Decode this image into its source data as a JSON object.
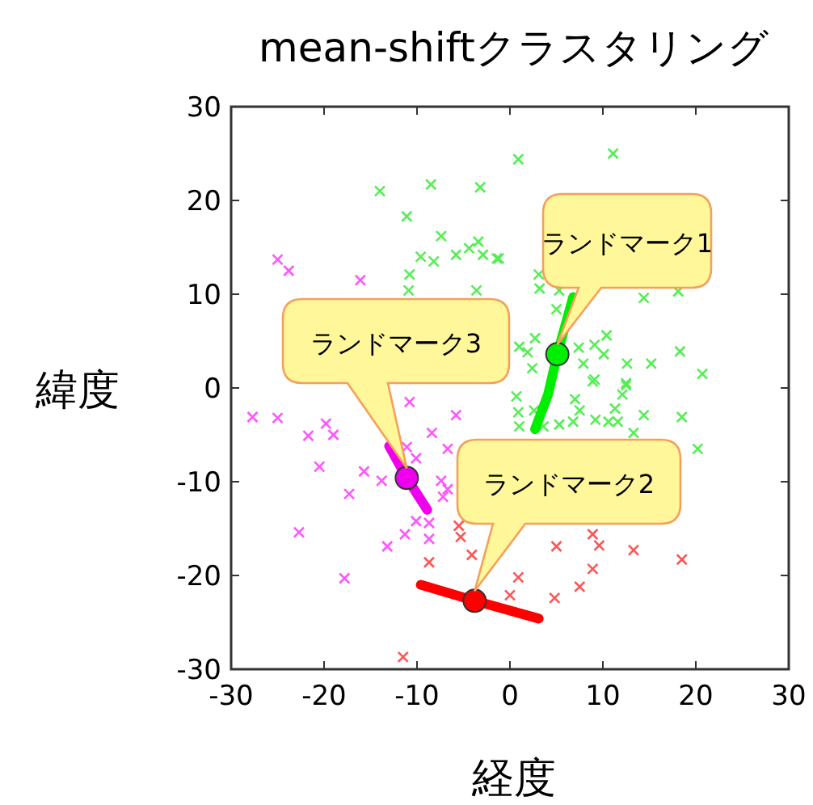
{
  "chart_data": {
    "type": "scatter",
    "title": "mean-shiftクラスタリング",
    "xlabel": "経度",
    "ylabel": "緯度",
    "xlim": [
      -30,
      30
    ],
    "ylim": [
      -30,
      30
    ],
    "xticks": [
      -30,
      -20,
      -10,
      0,
      10,
      20,
      30
    ],
    "yticks": [
      -30,
      -20,
      -10,
      0,
      10,
      20,
      30
    ],
    "grid": false,
    "series": [
      {
        "marker": "cross",
        "color": "#55ee55",
        "x": [
          -14.0,
          -8.5,
          -3.2,
          -11.1,
          -7.4,
          -9.6,
          -8.2,
          -5.8,
          -4.4,
          -3.4,
          -2.9,
          -1.4,
          -10.8,
          -10.9,
          -3.6,
          0.9,
          11.1,
          -1.2,
          3.1,
          3.2,
          5.3,
          14.4,
          18.1,
          5.0,
          2.7,
          10.4,
          9.1,
          7.4,
          1.0,
          1.9,
          10.1,
          18.3,
          7.9,
          12.6,
          15.2,
          20.7,
          9.1,
          12.5,
          2.4,
          8.9,
          12.5,
          12.1,
          0.7,
          7.0,
          7.5,
          0.9,
          2.6,
          11.3,
          14.4,
          18.5,
          3.6,
          1.0,
          5.3,
          6.8,
          9.2,
          10.6,
          11.6,
          13.3,
          20.2
        ],
        "values": [
          21.0,
          21.7,
          21.4,
          18.3,
          16.2,
          14.0,
          13.5,
          14.2,
          14.9,
          15.6,
          14.2,
          13.8,
          12.1,
          10.4,
          10.4,
          24.4,
          25.0,
          13.8,
          12.1,
          10.6,
          10.4,
          9.6,
          10.3,
          8.4,
          5.3,
          5.6,
          4.6,
          4.3,
          4.4,
          3.8,
          3.6,
          3.9,
          2.6,
          2.6,
          2.6,
          1.5,
          0.9,
          0.5,
          2.1,
          0.7,
          0.3,
          -0.7,
          -0.9,
          -1.2,
          -2.4,
          -2.6,
          -2.4,
          -2.2,
          -2.9,
          -3.1,
          -4.1,
          -4.1,
          -3.9,
          -3.6,
          -3.4,
          -3.6,
          -3.6,
          -4.8,
          -6.5
        ]
      },
      {
        "marker": "cross",
        "color": "#ff5555",
        "x": [
          5.0,
          9.6,
          8.9,
          13.3,
          18.5,
          8.9,
          7.5,
          4.8,
          0.9,
          0.0,
          -8.7,
          -11.5,
          -5.3,
          -4.1,
          -5.5
        ],
        "values": [
          -16.9,
          -16.8,
          -15.6,
          -17.3,
          -18.3,
          -19.3,
          -21.2,
          -22.4,
          -20.2,
          -22.1,
          -18.6,
          -28.7,
          -15.9,
          -17.8,
          -14.7
        ]
      },
      {
        "marker": "cross",
        "color": "#ff55ff",
        "x": [
          -27.7,
          -25.0,
          -19.8,
          -21.7,
          -19.0,
          -20.5,
          -15.7,
          -17.3,
          -13.8,
          -11.1,
          -10.1,
          -8.4,
          -5.8,
          -6.7,
          -7.4,
          -6.7,
          -7.2,
          -22.7,
          -17.8,
          -13.2,
          -11.3,
          -8.7,
          -8.7,
          -10.1,
          -10.8,
          -25.0,
          -23.8,
          -16.1
        ],
        "values": [
          -3.1,
          -3.2,
          -3.8,
          -5.1,
          -5.0,
          -8.4,
          -8.9,
          -11.3,
          -9.9,
          -6.3,
          -7.5,
          -4.8,
          -2.9,
          -6.5,
          -9.9,
          -10.8,
          -11.6,
          -15.4,
          -20.3,
          -16.9,
          -15.6,
          -14.4,
          -16.1,
          -14.2,
          -1.5,
          13.7,
          12.5,
          11.5
        ]
      },
      {
        "type": "line",
        "marker": "none",
        "color": "#00ee00",
        "x": [
          6.8,
          5.1,
          4.1,
          2.7
        ],
        "values": [
          9.7,
          3.6,
          -0.7,
          -4.4
        ]
      },
      {
        "type": "line",
        "marker": "none",
        "color": "#ee00ee",
        "x": [
          -13.0,
          -11.1,
          -8.9
        ],
        "values": [
          -6.2,
          -9.6,
          -13.0
        ]
      },
      {
        "type": "line",
        "marker": "none",
        "color": "#ff0000",
        "x": [
          -9.6,
          -3.8,
          3.1
        ],
        "values": [
          -21.0,
          -22.7,
          -24.6
        ]
      },
      {
        "marker": "circle",
        "color": "#00ee00",
        "x": [
          5.1
        ],
        "values": [
          3.6
        ]
      },
      {
        "marker": "circle",
        "color": "#ff0000",
        "x": [
          -3.8
        ],
        "values": [
          -22.7
        ]
      },
      {
        "marker": "circle",
        "color": "#ee00ee",
        "x": [
          -11.1
        ],
        "values": [
          -9.6
        ]
      }
    ],
    "annotations": [
      "ランドマーク1",
      "ランドマーク2",
      "ランドマーク3"
    ]
  }
}
